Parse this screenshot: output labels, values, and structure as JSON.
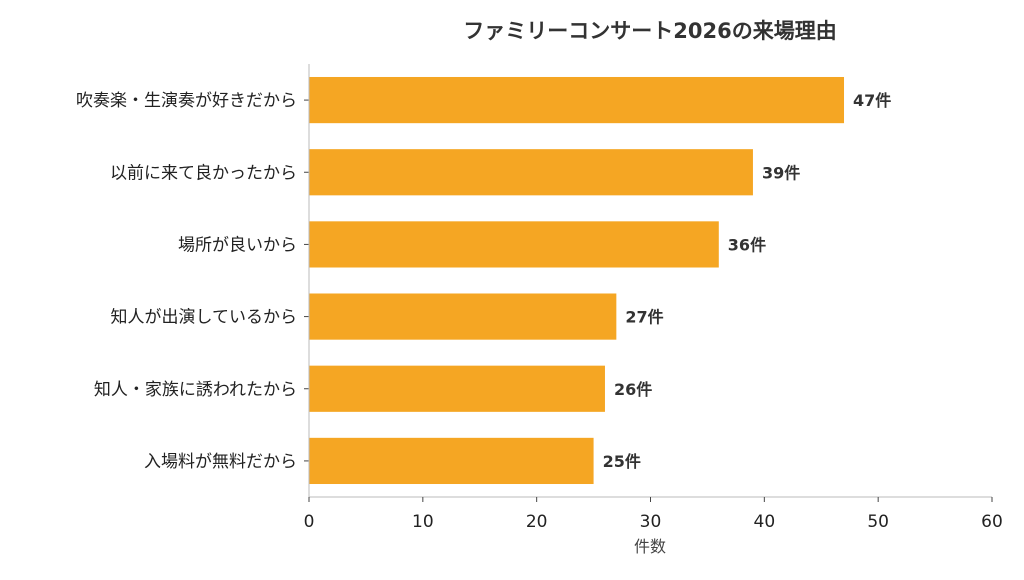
{
  "chart_data": {
    "type": "bar",
    "orientation": "horizontal",
    "title": "ファミリーコンサート2026の来場理由",
    "xlabel": "件数",
    "ylabel": "",
    "xlim": [
      0,
      60
    ],
    "xticks": [
      0,
      10,
      20,
      30,
      40,
      50,
      60
    ],
    "grid": false,
    "bar_color": "#F5A623",
    "value_suffix": "件",
    "categories": [
      "吹奏楽・生演奏が好きだから",
      "以前に来て良かったから",
      "場所が良いから",
      "知人が出演しているから",
      "知人・家族に誘われたから",
      "入場料が無料だから"
    ],
    "values": [
      47,
      39,
      36,
      27,
      26,
      25
    ]
  }
}
